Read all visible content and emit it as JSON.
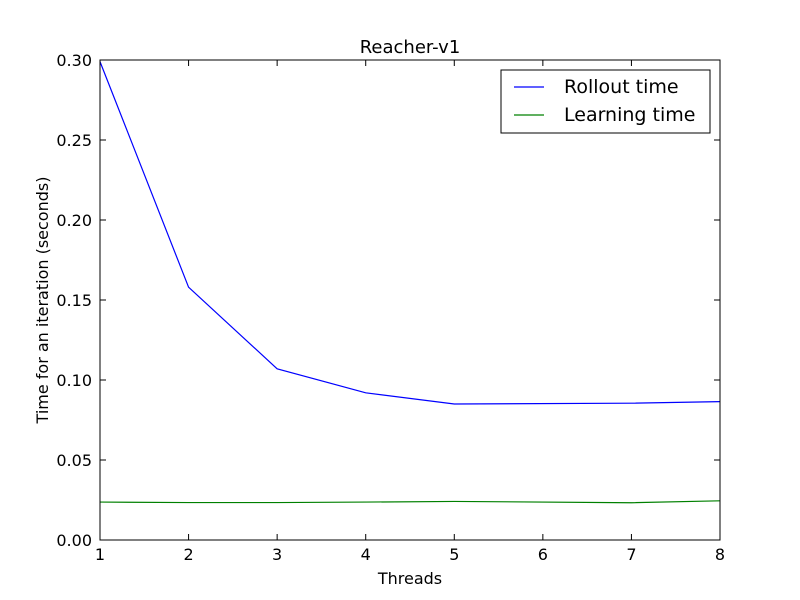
{
  "chart_data": {
    "type": "line",
    "title": "Reacher-v1",
    "xlabel": "Threads",
    "ylabel": "Time for an iteration (seconds)",
    "xlim": [
      1,
      8
    ],
    "ylim": [
      0,
      0.3
    ],
    "x_ticks": [
      1,
      2,
      3,
      4,
      5,
      6,
      7,
      8
    ],
    "y_ticks": [
      0.0,
      0.05,
      0.1,
      0.15,
      0.2,
      0.25,
      0.3
    ],
    "y_tick_labels": [
      "0.00",
      "0.05",
      "0.10",
      "0.15",
      "0.20",
      "0.25",
      "0.30"
    ],
    "grid": false,
    "legend_position": "top-right",
    "series": [
      {
        "name": "Rollout time",
        "color": "#0000ff",
        "x": [
          1,
          2,
          3,
          4,
          5,
          7,
          8
        ],
        "values": [
          0.299,
          0.158,
          0.107,
          0.092,
          0.085,
          0.0855,
          0.0865
        ]
      },
      {
        "name": "Learning time",
        "color": "#008000",
        "x": [
          1,
          2,
          3,
          4,
          5,
          7,
          8
        ],
        "values": [
          0.0237,
          0.0234,
          0.0234,
          0.0237,
          0.0241,
          0.0233,
          0.0245
        ]
      }
    ]
  }
}
